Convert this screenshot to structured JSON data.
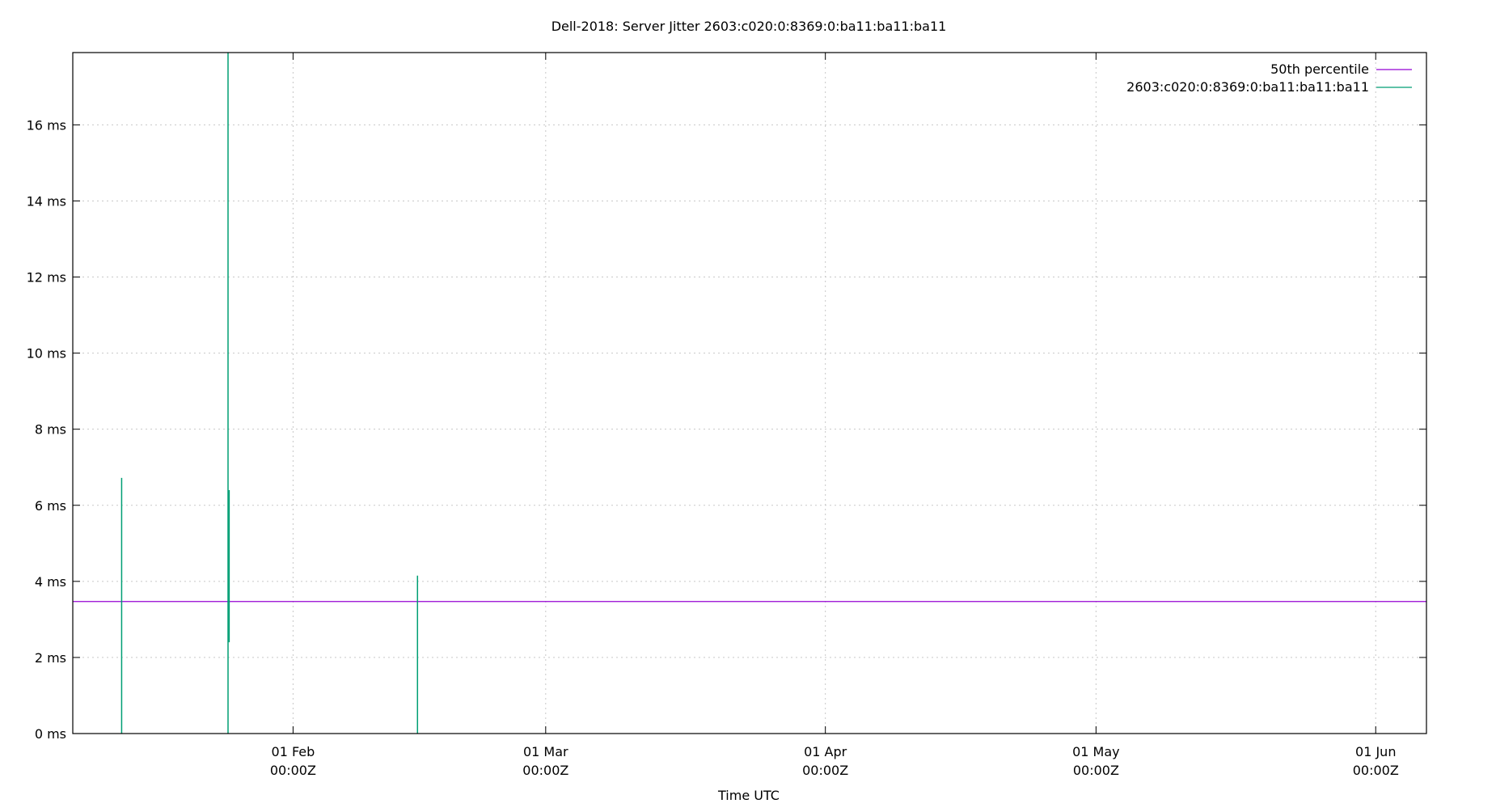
{
  "chart_data": {
    "type": "line",
    "title": "Dell-2018: Server Jitter 2603:c020:0:8369:0:ba11:ba11:ba11",
    "xlabel": "Time UTC",
    "ylabel": "",
    "xlim": [
      "2018-01-07T14:00Z",
      "2018-06-06T15:00Z"
    ],
    "ylim": [
      0,
      17.9
    ],
    "grid": true,
    "legend_position": "top-right",
    "y_ticks": [
      {
        "value": 0,
        "label": "0 ms"
      },
      {
        "value": 2,
        "label": "2 ms"
      },
      {
        "value": 4,
        "label": "4 ms"
      },
      {
        "value": 6,
        "label": "6 ms"
      },
      {
        "value": 8,
        "label": "8 ms"
      },
      {
        "value": 10,
        "label": "10 ms"
      },
      {
        "value": 12,
        "label": "12 ms"
      },
      {
        "value": 14,
        "label": "14 ms"
      },
      {
        "value": 16,
        "label": "16 ms"
      }
    ],
    "x_ticks": [
      {
        "value": "2018-02-01T00:00Z",
        "label1": "01 Feb",
        "label2": "00:00Z"
      },
      {
        "value": "2018-03-01T00:00Z",
        "label1": "01 Mar",
        "label2": "00:00Z"
      },
      {
        "value": "2018-04-01T00:00Z",
        "label1": "01 Apr",
        "label2": "00:00Z"
      },
      {
        "value": "2018-05-01T00:00Z",
        "label1": "01 May",
        "label2": "00:00Z"
      },
      {
        "value": "2018-06-01T00:00Z",
        "label1": "01 Jun",
        "label2": "00:00Z"
      }
    ],
    "series": [
      {
        "name": "50th percentile",
        "color": "#9400d3",
        "type": "hline",
        "value": 3.47
      },
      {
        "name": "2603:c020:0:8369:0:ba11:ba11:ba11",
        "color": "#009e73",
        "type": "spikes",
        "points": [
          {
            "t": "2018-01-13T00:00Z",
            "low": 0,
            "high": 6.72
          },
          {
            "t": "2018-01-24T19:00Z",
            "low": 0,
            "high": 17.9
          },
          {
            "t": "2018-01-24T22:00Z",
            "low": 2.4,
            "high": 6.4
          },
          {
            "t": "2018-02-14T19:00Z",
            "low": 0,
            "high": 4.15
          }
        ]
      }
    ]
  }
}
